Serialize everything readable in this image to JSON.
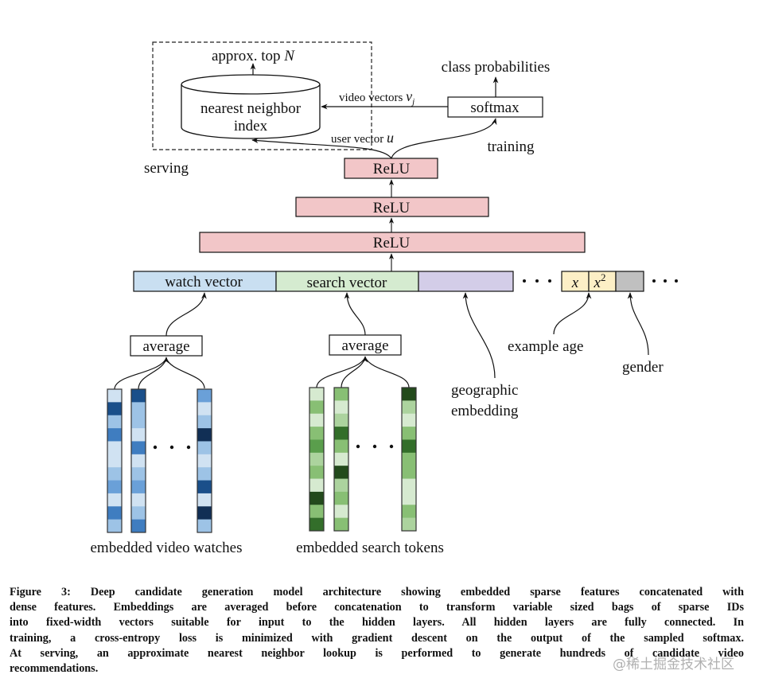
{
  "diagram": {
    "approx_top": "approx. top ",
    "approx_top_var": "N",
    "nn_index_line1": "nearest neighbor",
    "nn_index_line2": "index",
    "class_probabilities": "class probabilities",
    "softmax": "softmax",
    "video_vectors": "video vectors ",
    "video_vectors_var": "v",
    "video_vectors_sub": "j",
    "user_vector": "user vector ",
    "user_vector_var": "u",
    "training": "training",
    "serving": "serving",
    "relu_layers": [
      "ReLU",
      "ReLU",
      "ReLU"
    ],
    "watch_vector": "watch vector",
    "search_vector": "search vector",
    "dense_x": "x",
    "dense_x2": "x",
    "dense_x2_sup": "2",
    "average": "average",
    "geographic_line1": "geographic",
    "geographic_line2": "embedding",
    "example_age": "example age",
    "gender": "gender",
    "embedded_video_watches": "embedded video watches",
    "embedded_search_tokens": "embedded search tokens",
    "colors": {
      "relu": "#f2c6c8",
      "watch": "#c9dff1",
      "search": "#d5ebd0",
      "geographic": "#d3cde8",
      "age": "#fcefc6",
      "gender": "#c0c0c0"
    },
    "video_watch_columns": [
      [
        "#d0e2f2",
        "#1a4f8a",
        "#9dc3e6",
        "#3f7dc0",
        "#d0e2f2",
        "#d0e2f2",
        "#9dc3e6",
        "#6aa0d8",
        "#d0e2f2",
        "#3f7dc0",
        "#9dc3e6"
      ],
      [
        "#1a4f8a",
        "#9dc3e6",
        "#9dc3e6",
        "#d0e2f2",
        "#3f7dc0",
        "#d0e2f2",
        "#9dc3e6",
        "#6aa0d8",
        "#d0e2f2",
        "#9dc3e6",
        "#3f7dc0"
      ],
      [
        "#6aa0d8",
        "#d0e2f2",
        "#9dc3e6",
        "#112f55",
        "#9dc3e6",
        "#d0e2f2",
        "#9dc3e6",
        "#1a4f8a",
        "#d0e2f2",
        "#112f55",
        "#9dc3e6"
      ]
    ],
    "search_token_columns": [
      [
        "#d6ead0",
        "#88bf74",
        "#d6ead0",
        "#88bf74",
        "#5a9e4c",
        "#acd39e",
        "#88bf74",
        "#d6ead0",
        "#234a1c",
        "#88bf74",
        "#336e2a"
      ],
      [
        "#88bf74",
        "#d6ead0",
        "#acd39e",
        "#336e2a",
        "#88bf74",
        "#d6ead0",
        "#234a1c",
        "#acd39e",
        "#88bf74",
        "#d6ead0",
        "#88bf74"
      ],
      [
        "#234a1c",
        "#acd39e",
        "#d6ead0",
        "#88bf74",
        "#336e2a",
        "#88bf74",
        "#88bf74",
        "#d6ead0",
        "#d6ead0",
        "#88bf74",
        "#acd39e"
      ]
    ]
  },
  "caption": [
    "Figure 3: Deep candidate generation model architecture showing embedded sparse features concatenated with",
    "dense features. Embeddings are averaged before concatenation to transform variable sized bags of sparse IDs",
    "into fixed-width vectors suitable for input to the hidden layers. All hidden layers are fully connected. In",
    "training, a cross-entropy loss is minimized with gradient descent on the output of the sampled softmax.",
    "At serving, an approximate nearest neighbor lookup is performed to generate hundreds of candidate video",
    "recommendations."
  ],
  "watermark": "@稀土掘金技术社区"
}
